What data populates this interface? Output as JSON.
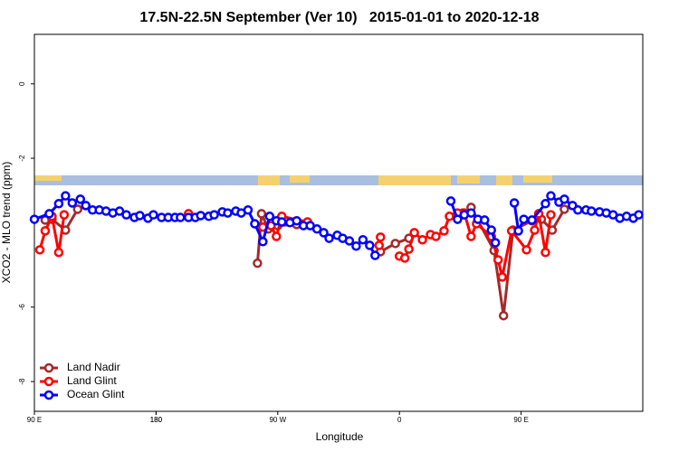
{
  "chart_data": {
    "type": "line",
    "title": "17.5N-22.5N September (Ver 10)   2015-01-01 to 2020-12-18",
    "x_label": "Longitude",
    "y_label": "XCO2 - MLO trend (ppm)",
    "xlim": [
      90,
      540
    ],
    "ylim": [
      -8.8,
      1.33
    ],
    "xticks": [
      {
        "value": 90,
        "label": "90 E"
      },
      180,
      {
        "value": 270,
        "label": "90 W"
      },
      {
        "value": 360,
        "label": "0"
      },
      {
        "value": 450,
        "label": "90 E"
      },
      180
    ],
    "yticks": [
      -8,
      -6,
      -2,
      0
    ],
    "legend": "bottom-left",
    "series": [
      {
        "name": "Land Nadir",
        "color": "#a52a2a",
        "x": [
          98,
          103,
          113,
          122,
          null,
          255,
          258,
          263,
          270,
          284,
          null,
          346,
          357,
          367,
          null,
          407,
          413,
          430,
          437,
          444,
          458,
          465,
          473,
          482
        ],
        "values": [
          -3.66,
          -3.64,
          -3.93,
          -3.37,
          null,
          -4.82,
          -3.49,
          -3.9,
          -3.81,
          -3.78,
          null,
          -4.51,
          -4.29,
          -4.15,
          null,
          -3.47,
          -3.32,
          -4.48,
          -6.23,
          -3.93,
          -3.68,
          -3.64,
          -3.93,
          -3.37
        ]
      },
      {
        "name": "Land Glint",
        "color": "#ff0000",
        "x": [
          94,
          98,
          103,
          108,
          112,
          null,
          204,
          null,
          259,
          265,
          269,
          273,
          292,
          null,
          345,
          346,
          null,
          360,
          364,
          367,
          371,
          377,
          383,
          387,
          393,
          397,
          403,
          408,
          413,
          417,
          428,
          433,
          436,
          443,
          454,
          460,
          463,
          468,
          472
        ],
        "values": [
          -4.46,
          -3.95,
          -3.56,
          -4.53,
          -3.52,
          null,
          -3.49,
          null,
          -3.85,
          -3.81,
          -4.1,
          -3.56,
          -3.71,
          null,
          -4.34,
          -4.12,
          null,
          -4.63,
          -4.68,
          -4.44,
          -4.0,
          -4.19,
          -4.05,
          -4.1,
          -3.95,
          -3.56,
          -3.47,
          -3.47,
          -4.1,
          -3.76,
          -4.1,
          -4.73,
          -5.19,
          -3.95,
          -4.46,
          -3.93,
          -3.49,
          -4.53,
          -3.52
        ]
      },
      {
        "name": "Ocean Glint",
        "color": "#0000ff",
        "x": [
          90,
          101,
          108,
          113,
          118,
          124,
          128,
          133,
          138,
          143,
          148,
          153,
          158,
          164,
          168,
          174,
          178,
          184,
          189,
          194,
          198,
          204,
          209,
          213,
          219,
          223,
          229,
          233,
          239,
          243,
          248,
          253,
          259,
          264,
          269,
          273,
          279,
          284,
          289,
          294,
          299,
          304,
          308,
          314,
          318,
          323,
          328,
          333,
          338,
          342,
          null,
          398,
          403,
          408,
          413,
          418,
          423,
          428,
          431,
          null,
          445,
          448,
          452,
          458,
          468,
          472,
          478,
          482,
          488,
          492,
          498,
          502,
          508,
          513,
          518,
          523,
          528,
          533,
          537
        ],
        "values": [
          -3.64,
          -3.49,
          -3.22,
          -3.01,
          -3.2,
          -3.1,
          -3.27,
          -3.39,
          -3.39,
          -3.42,
          -3.47,
          -3.42,
          -3.52,
          -3.59,
          -3.54,
          -3.61,
          -3.52,
          -3.59,
          -3.59,
          -3.59,
          -3.59,
          -3.59,
          -3.59,
          -3.54,
          -3.56,
          -3.52,
          -3.44,
          -3.47,
          -3.42,
          -3.47,
          -3.39,
          -3.76,
          -4.24,
          -3.56,
          -3.68,
          -3.71,
          -3.73,
          -3.68,
          -3.81,
          -3.81,
          -3.9,
          -4.0,
          -4.15,
          -4.07,
          -4.15,
          -4.22,
          -4.36,
          -4.19,
          -4.34,
          -4.61,
          null,
          -3.15,
          -3.64,
          -3.52,
          -3.47,
          -3.64,
          -3.66,
          -3.93,
          -4.27,
          null,
          -3.2,
          -3.95,
          -3.64,
          -3.66,
          -3.22,
          -3.01,
          -3.18,
          -3.1,
          -3.27,
          -3.39,
          -3.39,
          -3.42,
          -3.44,
          -3.47,
          -3.52,
          -3.61,
          -3.56,
          -3.61,
          -3.52
        ]
      }
    ]
  }
}
